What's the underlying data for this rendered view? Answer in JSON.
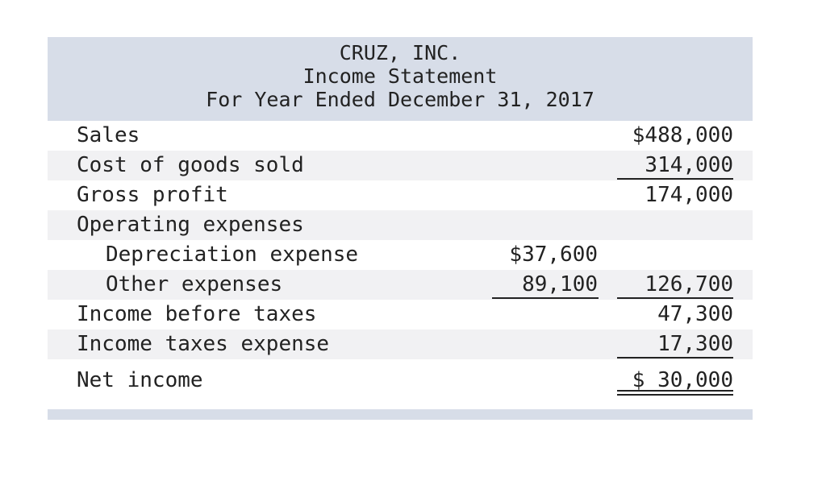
{
  "header": {
    "company": "CRUZ, INC.",
    "statement": "Income Statement",
    "period": "For Year Ended December 31, 2017"
  },
  "rows": [
    {
      "label": "Sales",
      "mid": "",
      "right": "$488,000"
    },
    {
      "label": "Cost of goods sold",
      "mid": "",
      "right": "314,000"
    },
    {
      "label": "Gross profit",
      "mid": "",
      "right": "174,000"
    },
    {
      "label": "Operating expenses",
      "mid": "",
      "right": ""
    },
    {
      "label": "Depreciation expense",
      "mid": "$37,600",
      "right": ""
    },
    {
      "label": "Other expenses",
      "mid": "89,100",
      "right": "126,700"
    },
    {
      "label": "Income before taxes",
      "mid": "",
      "right": "47,300"
    },
    {
      "label": "Income taxes expense",
      "mid": "",
      "right": "17,300"
    },
    {
      "label": "Net income",
      "mid": "",
      "right": "$ 30,000"
    }
  ]
}
